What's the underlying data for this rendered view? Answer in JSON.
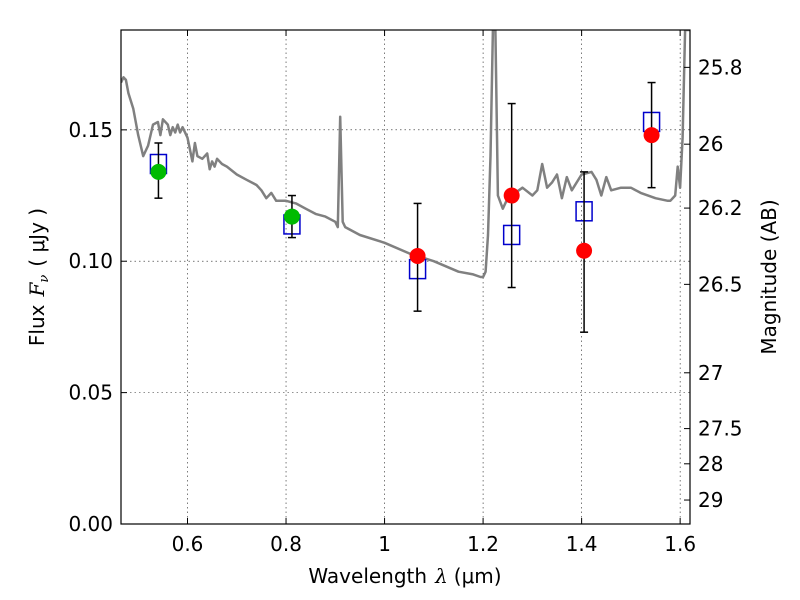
{
  "chart_data": {
    "type": "scatter",
    "xlabel": "Wavelength",
    "xlabel_symbol": "λ",
    "xlabel_unit": "(μm)",
    "ylabel": "Flux",
    "ylabel_symbol": "F",
    "ylabel_subscript": "ν",
    "ylabel_unit": "( μJy )",
    "ylabel_right": "Magnitude (AB)",
    "xlim": [
      0.465,
      1.62
    ],
    "ylim": [
      0.0,
      0.188
    ],
    "grid": true,
    "x_ticks": [
      {
        "value": 0.6,
        "label": "0.6"
      },
      {
        "value": 0.8,
        "label": "0.8"
      },
      {
        "value": 1.0,
        "label": "1"
      },
      {
        "value": 1.2,
        "label": "1.2"
      },
      {
        "value": 1.4,
        "label": "1.4"
      },
      {
        "value": 1.6,
        "label": "1.6"
      }
    ],
    "y_ticks": [
      {
        "value": 0.0,
        "label": "0.00"
      },
      {
        "value": 0.05,
        "label": "0.05"
      },
      {
        "value": 0.1,
        "label": "0.10"
      },
      {
        "value": 0.15,
        "label": "0.15"
      }
    ],
    "mag_ticks": [
      {
        "value": 25.8,
        "label": "25.8"
      },
      {
        "value": 26.0,
        "label": "26"
      },
      {
        "value": 26.2,
        "label": "26.2"
      },
      {
        "value": 26.5,
        "label": "26.5"
      },
      {
        "value": 27.0,
        "label": "27"
      },
      {
        "value": 27.5,
        "label": "27.5"
      },
      {
        "value": 28.0,
        "label": "28"
      },
      {
        "value": 29.0,
        "label": "29"
      }
    ],
    "colors": {
      "model": "#808080",
      "green_points": "#00bb00",
      "red_points": "#ff0000",
      "model_squares": "#0000cc",
      "errorbar": "#000000"
    },
    "series": [
      {
        "name": "model_spectrum",
        "kind": "line",
        "x": [
          0.465,
          0.47,
          0.475,
          0.48,
          0.49,
          0.5,
          0.51,
          0.52,
          0.53,
          0.54,
          0.545,
          0.55,
          0.56,
          0.565,
          0.57,
          0.575,
          0.58,
          0.585,
          0.59,
          0.6,
          0.61,
          0.615,
          0.62,
          0.63,
          0.64,
          0.645,
          0.65,
          0.655,
          0.66,
          0.67,
          0.68,
          0.7,
          0.72,
          0.74,
          0.75,
          0.76,
          0.77,
          0.78,
          0.8,
          0.82,
          0.84,
          0.86,
          0.88,
          0.9,
          0.905,
          0.91,
          0.915,
          0.92,
          0.95,
          1.0,
          1.05,
          1.1,
          1.15,
          1.18,
          1.195,
          1.2,
          1.205,
          1.21,
          1.215,
          1.22,
          1.225,
          1.23,
          1.24,
          1.25,
          1.28,
          1.3,
          1.31,
          1.32,
          1.33,
          1.34,
          1.35,
          1.36,
          1.37,
          1.38,
          1.4,
          1.42,
          1.43,
          1.44,
          1.45,
          1.46,
          1.48,
          1.5,
          1.52,
          1.55,
          1.575,
          1.58,
          1.59,
          1.595,
          1.6,
          1.605,
          1.61,
          1.615,
          1.62
        ],
        "y": [
          0.168,
          0.17,
          0.169,
          0.164,
          0.158,
          0.148,
          0.14,
          0.144,
          0.152,
          0.153,
          0.148,
          0.154,
          0.152,
          0.148,
          0.151,
          0.149,
          0.152,
          0.149,
          0.151,
          0.147,
          0.138,
          0.145,
          0.14,
          0.139,
          0.141,
          0.135,
          0.138,
          0.136,
          0.139,
          0.137,
          0.136,
          0.133,
          0.131,
          0.129,
          0.127,
          0.124,
          0.126,
          0.123,
          0.123,
          0.122,
          0.12,
          0.118,
          0.117,
          0.115,
          0.113,
          0.155,
          0.115,
          0.113,
          0.11,
          0.107,
          0.103,
          0.1,
          0.096,
          0.095,
          0.094,
          0.094,
          0.096,
          0.11,
          0.14,
          0.188,
          0.188,
          0.125,
          0.12,
          0.124,
          0.128,
          0.125,
          0.127,
          0.137,
          0.128,
          0.13,
          0.133,
          0.124,
          0.132,
          0.127,
          0.133,
          0.134,
          0.131,
          0.125,
          0.132,
          0.127,
          0.128,
          0.128,
          0.126,
          0.124,
          0.123,
          0.123,
          0.125,
          0.136,
          0.128,
          0.147,
          0.188,
          0.188,
          0.188
        ]
      },
      {
        "name": "model_squares",
        "kind": "marker",
        "marker": "square",
        "x": [
          0.541,
          0.812,
          1.067,
          1.258,
          1.405,
          1.542
        ],
        "y": [
          0.137,
          0.114,
          0.097,
          0.11,
          0.119,
          0.153
        ]
      },
      {
        "name": "green_points",
        "kind": "marker",
        "marker": "circle",
        "x": [
          0.541,
          0.812
        ],
        "y": [
          0.134,
          0.117
        ],
        "yerr_low": [
          0.124,
          0.109
        ],
        "yerr_high": [
          0.145,
          0.125
        ]
      },
      {
        "name": "red_points",
        "kind": "marker",
        "marker": "circle",
        "x": [
          1.067,
          1.258,
          1.405,
          1.542
        ],
        "y": [
          0.102,
          0.125,
          0.104,
          0.148
        ],
        "yerr_low": [
          0.081,
          0.09,
          0.073,
          0.128
        ],
        "yerr_high": [
          0.122,
          0.16,
          0.134,
          0.168
        ]
      }
    ]
  }
}
